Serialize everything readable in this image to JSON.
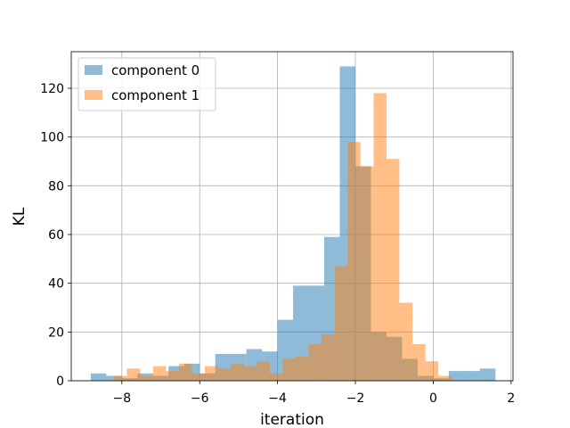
{
  "chart_data": {
    "type": "bar",
    "title": "",
    "xlabel": "iteration",
    "ylabel": "KL",
    "xlim": [
      -9.3,
      2.05
    ],
    "ylim": [
      0,
      135
    ],
    "xticks": [
      -8,
      -6,
      -4,
      -2,
      0,
      2
    ],
    "xtick_labels": [
      "−8",
      "−6",
      "−4",
      "−2",
      "0",
      "2"
    ],
    "yticks": [
      0,
      20,
      40,
      60,
      80,
      100,
      120
    ],
    "ytick_labels": [
      "0",
      "20",
      "40",
      "60",
      "80",
      "100",
      "120"
    ],
    "grid": true,
    "legend_position": "top-left",
    "series": [
      {
        "name": "component 0",
        "color": "#1f77b4",
        "opacity": 0.5,
        "bins": [
          {
            "x0": -8.8,
            "x1": -8.4,
            "value": 3
          },
          {
            "x0": -8.4,
            "x1": -8.0,
            "value": 2
          },
          {
            "x0": -8.0,
            "x1": -7.6,
            "value": 1
          },
          {
            "x0": -7.6,
            "x1": -7.2,
            "value": 3
          },
          {
            "x0": -7.2,
            "x1": -6.8,
            "value": 2
          },
          {
            "x0": -6.8,
            "x1": -6.4,
            "value": 6
          },
          {
            "x0": -6.4,
            "x1": -6.0,
            "value": 7
          },
          {
            "x0": -6.0,
            "x1": -5.6,
            "value": 3
          },
          {
            "x0": -5.6,
            "x1": -5.2,
            "value": 11
          },
          {
            "x0": -5.2,
            "x1": -4.8,
            "value": 11
          },
          {
            "x0": -4.8,
            "x1": -4.4,
            "value": 13
          },
          {
            "x0": -4.4,
            "x1": -4.0,
            "value": 12
          },
          {
            "x0": -4.0,
            "x1": -3.6,
            "value": 25
          },
          {
            "x0": -3.6,
            "x1": -3.2,
            "value": 39
          },
          {
            "x0": -3.2,
            "x1": -2.8,
            "value": 39
          },
          {
            "x0": -2.8,
            "x1": -2.4,
            "value": 59
          },
          {
            "x0": -2.4,
            "x1": -2.0,
            "value": 129
          },
          {
            "x0": -2.0,
            "x1": -1.6,
            "value": 88
          },
          {
            "x0": -1.6,
            "x1": -1.2,
            "value": 20
          },
          {
            "x0": -1.2,
            "x1": -0.8,
            "value": 18
          },
          {
            "x0": -0.8,
            "x1": -0.4,
            "value": 9
          },
          {
            "x0": -0.4,
            "x1": 0.0,
            "value": 2
          },
          {
            "x0": 0.0,
            "x1": 0.4,
            "value": 1
          },
          {
            "x0": 0.4,
            "x1": 0.8,
            "value": 4
          },
          {
            "x0": 0.8,
            "x1": 1.2,
            "value": 4
          },
          {
            "x0": 1.2,
            "x1": 1.6,
            "value": 5
          }
        ]
      },
      {
        "name": "component 1",
        "color": "#ff7f0e",
        "opacity": 0.5,
        "bins": [
          {
            "x0": -8.2,
            "x1": -7.87,
            "value": 2
          },
          {
            "x0": -7.87,
            "x1": -7.53,
            "value": 5
          },
          {
            "x0": -7.53,
            "x1": -7.2,
            "value": 2
          },
          {
            "x0": -7.2,
            "x1": -6.87,
            "value": 6
          },
          {
            "x0": -6.87,
            "x1": -6.53,
            "value": 4
          },
          {
            "x0": -6.53,
            "x1": -6.2,
            "value": 7
          },
          {
            "x0": -6.2,
            "x1": -5.87,
            "value": 3
          },
          {
            "x0": -5.87,
            "x1": -5.53,
            "value": 6
          },
          {
            "x0": -5.53,
            "x1": -5.2,
            "value": 5
          },
          {
            "x0": -5.2,
            "x1": -4.87,
            "value": 7
          },
          {
            "x0": -4.87,
            "x1": -4.53,
            "value": 6
          },
          {
            "x0": -4.53,
            "x1": -4.2,
            "value": 8
          },
          {
            "x0": -4.2,
            "x1": -3.87,
            "value": 3
          },
          {
            "x0": -3.87,
            "x1": -3.53,
            "value": 9
          },
          {
            "x0": -3.53,
            "x1": -3.2,
            "value": 10
          },
          {
            "x0": -3.2,
            "x1": -2.87,
            "value": 15
          },
          {
            "x0": -2.87,
            "x1": -2.53,
            "value": 19
          },
          {
            "x0": -2.53,
            "x1": -2.2,
            "value": 47
          },
          {
            "x0": -2.2,
            "x1": -1.87,
            "value": 98
          },
          {
            "x0": -1.87,
            "x1": -1.53,
            "value": 88
          },
          {
            "x0": -1.53,
            "x1": -1.2,
            "value": 118
          },
          {
            "x0": -1.2,
            "x1": -0.87,
            "value": 91
          },
          {
            "x0": -0.87,
            "x1": -0.53,
            "value": 32
          },
          {
            "x0": -0.53,
            "x1": -0.2,
            "value": 15
          },
          {
            "x0": -0.2,
            "x1": 0.13,
            "value": 8
          },
          {
            "x0": 0.13,
            "x1": 0.47,
            "value": 2
          }
        ]
      }
    ]
  }
}
